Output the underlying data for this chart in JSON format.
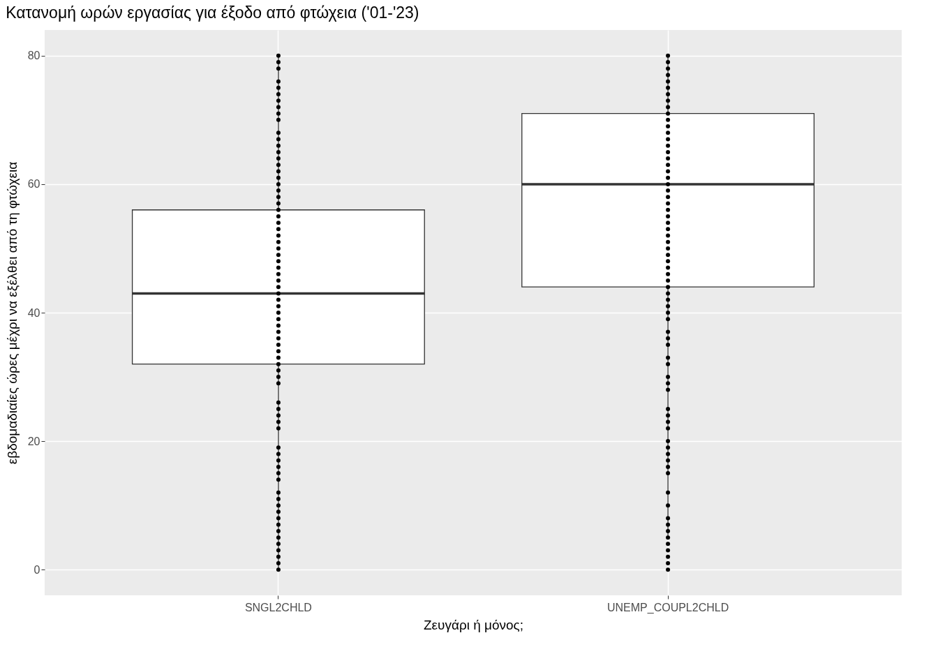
{
  "chart_data": {
    "type": "box",
    "title": "Κατανομή ωρών εργασίας για έξοδο από φτώχεια ('01-'23)",
    "xlabel": "Ζευγάρι ή μόνος;",
    "ylabel": "εβδομαδιαίες ώρες μέχρι να εξέλθει από τη φτώχεια",
    "categories": [
      "SNGL2CHLD",
      "UNEMP_COUPL2CHLD"
    ],
    "ylim": [
      -4,
      84
    ],
    "yticks": [
      0,
      20,
      40,
      60,
      80
    ],
    "grid": true,
    "boxes": [
      {
        "low": 0,
        "q1": 32,
        "median": 43,
        "q3": 56,
        "high": 80
      },
      {
        "low": 5,
        "q1": 44,
        "median": 60,
        "q3": 71,
        "high": 80
      }
    ],
    "series": [
      {
        "type": "scatter",
        "color": "#000000",
        "marker": "circle",
        "x": [
          "SNGL2CHLD",
          "SNGL2CHLD",
          "SNGL2CHLD",
          "SNGL2CHLD",
          "SNGL2CHLD",
          "SNGL2CHLD",
          "SNGL2CHLD",
          "SNGL2CHLD",
          "SNGL2CHLD",
          "SNGL2CHLD",
          "SNGL2CHLD",
          "SNGL2CHLD",
          "SNGL2CHLD",
          "SNGL2CHLD",
          "SNGL2CHLD",
          "SNGL2CHLD",
          "SNGL2CHLD",
          "SNGL2CHLD",
          "SNGL2CHLD",
          "SNGL2CHLD",
          "SNGL2CHLD",
          "SNGL2CHLD",
          "SNGL2CHLD",
          "SNGL2CHLD",
          "SNGL2CHLD",
          "SNGL2CHLD",
          "SNGL2CHLD",
          "SNGL2CHLD",
          "SNGL2CHLD",
          "SNGL2CHLD",
          "SNGL2CHLD",
          "SNGL2CHLD",
          "SNGL2CHLD",
          "SNGL2CHLD",
          "SNGL2CHLD",
          "SNGL2CHLD",
          "SNGL2CHLD",
          "SNGL2CHLD",
          "SNGL2CHLD",
          "SNGL2CHLD",
          "SNGL2CHLD",
          "SNGL2CHLD",
          "SNGL2CHLD",
          "SNGL2CHLD",
          "SNGL2CHLD",
          "SNGL2CHLD",
          "SNGL2CHLD",
          "SNGL2CHLD",
          "SNGL2CHLD",
          "SNGL2CHLD",
          "SNGL2CHLD",
          "SNGL2CHLD",
          "SNGL2CHLD",
          "SNGL2CHLD",
          "SNGL2CHLD",
          "SNGL2CHLD",
          "SNGL2CHLD",
          "SNGL2CHLD",
          "SNGL2CHLD",
          "SNGL2CHLD",
          "SNGL2CHLD",
          "SNGL2CHLD",
          "SNGL2CHLD",
          "SNGL2CHLD",
          "SNGL2CHLD",
          "SNGL2CHLD",
          "SNGL2CHLD",
          "SNGL2CHLD",
          "SNGL2CHLD",
          "SNGL2CHLD",
          "SNGL2CHLD",
          "SNGL2CHLD",
          "SNGL2CHLD",
          "SNGL2CHLD"
        ],
        "values": [
          80,
          79,
          78,
          76,
          75,
          74,
          73,
          72,
          71,
          70,
          68,
          67,
          66,
          65,
          64,
          63,
          62,
          61,
          60,
          59,
          58,
          57,
          56,
          55,
          54,
          53,
          52,
          51,
          50,
          49,
          48,
          47,
          46,
          45,
          44,
          43,
          42,
          41,
          40,
          39,
          38,
          37,
          36,
          35,
          34,
          33,
          32,
          31,
          30,
          29,
          26,
          25,
          24,
          23,
          22,
          19,
          18,
          17,
          16,
          15,
          14,
          12,
          11,
          10,
          9,
          8,
          7,
          6,
          5,
          4,
          3,
          2,
          1,
          0
        ]
      },
      {
        "type": "scatter",
        "color": "#000000",
        "marker": "circle",
        "x": [
          "UNEMP_COUPL2CHLD",
          "UNEMP_COUPL2CHLD",
          "UNEMP_COUPL2CHLD",
          "UNEMP_COUPL2CHLD",
          "UNEMP_COUPL2CHLD",
          "UNEMP_COUPL2CHLD",
          "UNEMP_COUPL2CHLD",
          "UNEMP_COUPL2CHLD",
          "UNEMP_COUPL2CHLD",
          "UNEMP_COUPL2CHLD",
          "UNEMP_COUPL2CHLD",
          "UNEMP_COUPL2CHLD",
          "UNEMP_COUPL2CHLD",
          "UNEMP_COUPL2CHLD",
          "UNEMP_COUPL2CHLD",
          "UNEMP_COUPL2CHLD",
          "UNEMP_COUPL2CHLD",
          "UNEMP_COUPL2CHLD",
          "UNEMP_COUPL2CHLD",
          "UNEMP_COUPL2CHLD",
          "UNEMP_COUPL2CHLD",
          "UNEMP_COUPL2CHLD",
          "UNEMP_COUPL2CHLD",
          "UNEMP_COUPL2CHLD",
          "UNEMP_COUPL2CHLD",
          "UNEMP_COUPL2CHLD",
          "UNEMP_COUPL2CHLD",
          "UNEMP_COUPL2CHLD",
          "UNEMP_COUPL2CHLD",
          "UNEMP_COUPL2CHLD",
          "UNEMP_COUPL2CHLD",
          "UNEMP_COUPL2CHLD",
          "UNEMP_COUPL2CHLD",
          "UNEMP_COUPL2CHLD",
          "UNEMP_COUPL2CHLD",
          "UNEMP_COUPL2CHLD",
          "UNEMP_COUPL2CHLD",
          "UNEMP_COUPL2CHLD",
          "UNEMP_COUPL2CHLD",
          "UNEMP_COUPL2CHLD",
          "UNEMP_COUPL2CHLD",
          "UNEMP_COUPL2CHLD",
          "UNEMP_COUPL2CHLD",
          "UNEMP_COUPL2CHLD",
          "UNEMP_COUPL2CHLD",
          "UNEMP_COUPL2CHLD",
          "UNEMP_COUPL2CHLD",
          "UNEMP_COUPL2CHLD",
          "UNEMP_COUPL2CHLD",
          "UNEMP_COUPL2CHLD",
          "UNEMP_COUPL2CHLD",
          "UNEMP_COUPL2CHLD",
          "UNEMP_COUPL2CHLD",
          "UNEMP_COUPL2CHLD",
          "UNEMP_COUPL2CHLD",
          "UNEMP_COUPL2CHLD",
          "UNEMP_COUPL2CHLD",
          "UNEMP_COUPL2CHLD",
          "UNEMP_COUPL2CHLD",
          "UNEMP_COUPL2CHLD",
          "UNEMP_COUPL2CHLD",
          "UNEMP_COUPL2CHLD",
          "UNEMP_COUPL2CHLD",
          "UNEMP_COUPL2CHLD",
          "UNEMP_COUPL2CHLD",
          "UNEMP_COUPL2CHLD",
          "UNEMP_COUPL2CHLD",
          "UNEMP_COUPL2CHLD",
          "UNEMP_COUPL2CHLD",
          "UNEMP_COUPL2CHLD",
          "UNEMP_COUPL2CHLD"
        ],
        "values": [
          80,
          79,
          78,
          77,
          76,
          75,
          74,
          73,
          72,
          71,
          70,
          69,
          68,
          67,
          66,
          65,
          64,
          63,
          62,
          61,
          60,
          59,
          58,
          57,
          56,
          55,
          54,
          53,
          52,
          51,
          50,
          49,
          48,
          47,
          46,
          45,
          44,
          43,
          42,
          41,
          40,
          39,
          37,
          36,
          35,
          33,
          32,
          30,
          29,
          28,
          25,
          24,
          23,
          22,
          20,
          19,
          18,
          17,
          16,
          15,
          12,
          10,
          8,
          7,
          6,
          5,
          4,
          3,
          2,
          1,
          0
        ]
      }
    ]
  }
}
